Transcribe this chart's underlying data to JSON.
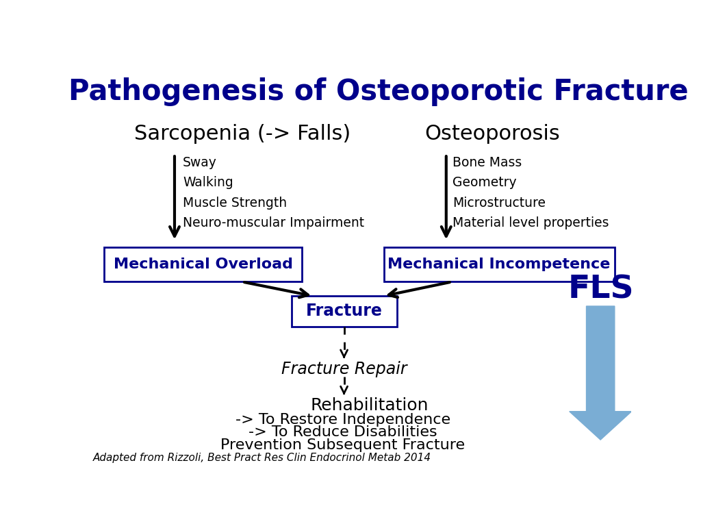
{
  "title": "Pathogenesis of Osteoporotic Fracture",
  "title_color": "#00008B",
  "title_fontsize": 30,
  "bg_color": "#FFFFFF",
  "sarcopenia_label": "Sarcopenia (-> Falls)",
  "sarcopenia_items": [
    "Sway",
    "Walking",
    "Muscle Strength",
    "Neuro-muscular Impairment"
  ],
  "osteoporosis_label": "Osteoporosis",
  "osteoporosis_items": [
    "Bone Mass",
    "Geometry",
    "Microstructure",
    "Material level properties"
  ],
  "mech_overload_label": "Mechanical Overload",
  "mech_incompetence_label": "Mechanical Incompetence",
  "box_color": "#00008B",
  "fracture_label": "Fracture",
  "fracture_repair_label": "Fracture Repair",
  "rehab_label": "Rehabilitation",
  "rehab_subitems": [
    "-> To Restore Independence",
    "-> To Reduce Disabilities",
    "Prevention Subsequent Fracture"
  ],
  "fls_label": "FLS",
  "fls_color": "#00008B",
  "arrow_blue_color": "#7aadd4",
  "citation": "Adapted from Rizzoli, Best Pract Res Clin Endocrinol Metab 2014"
}
